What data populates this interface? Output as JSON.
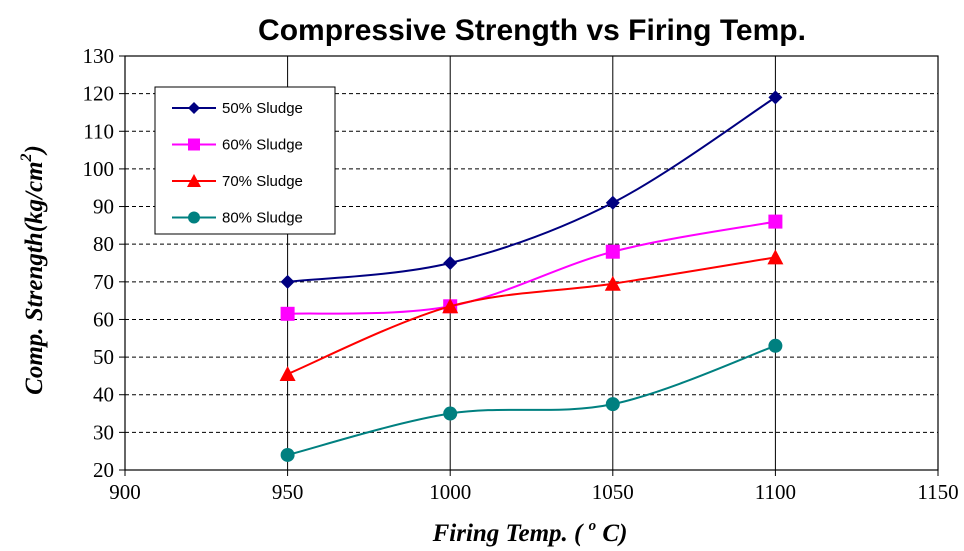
{
  "chart_data": {
    "type": "line",
    "title": "Compressive Strength vs Firing Temp.",
    "xlabel": "Firing Temp. ( ° C)",
    "xlabel_parts": {
      "prefix": "Firing Temp. ( ",
      "sup": "o",
      "suffix": " C)"
    },
    "ylabel": "Comp. Strength(kg/cm²)",
    "ylabel_parts": {
      "main": "Comp. Strength(kg/cm",
      "sup": "2",
      "close": ")"
    },
    "xlim": [
      900,
      1150
    ],
    "ylim": [
      20,
      130
    ],
    "xticks": [
      900,
      950,
      1000,
      1050,
      1100,
      1150
    ],
    "yticks": [
      20,
      30,
      40,
      50,
      60,
      70,
      80,
      90,
      100,
      110,
      120,
      130
    ],
    "x": [
      950,
      1000,
      1050,
      1100
    ],
    "grid": {
      "horizontal": "dashed",
      "vertical": "solid"
    },
    "legend_position": "top-left",
    "series": [
      {
        "name": "50% Sludge",
        "values": [
          70,
          75,
          91,
          119
        ],
        "color": "#000080",
        "marker": "diamond"
      },
      {
        "name": "60% Sludge",
        "values": [
          61.5,
          63.5,
          78,
          86
        ],
        "color": "#ff00ff",
        "marker": "square"
      },
      {
        "name": "70% Sludge",
        "values": [
          45.5,
          63.5,
          69.5,
          76.5
        ],
        "color": "#ff0000",
        "marker": "triangle"
      },
      {
        "name": "80% Sludge",
        "values": [
          24,
          35,
          37.5,
          53
        ],
        "color": "#008080",
        "marker": "circle"
      }
    ]
  }
}
